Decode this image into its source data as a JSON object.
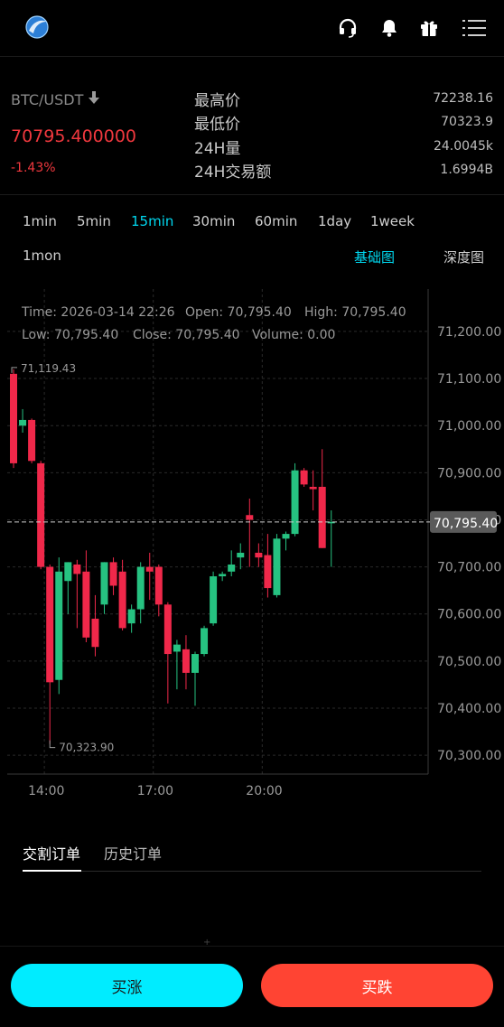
{
  "market": {
    "pair": "BTC/USDT",
    "price": "70795.400000",
    "change": "-1.43%"
  },
  "stats": [
    {
      "label": "最高价",
      "value": "72238.16"
    },
    {
      "label": "最低价",
      "value": "70323.9"
    },
    {
      "label": "24H量",
      "value": "24.0045k"
    },
    {
      "label": "24H交易额",
      "value": "1.6994B"
    }
  ],
  "timeframes": [
    "1min",
    "5min",
    "15min",
    "30min",
    "60min",
    "1day",
    "1week",
    "1mon"
  ],
  "active_timeframe": "15min",
  "chart_types": [
    "基础图",
    "深度图"
  ],
  "active_chart_type": "基础图",
  "chart_info": {
    "time": "Time: 2026-03-14 22:26",
    "open": "Open: 70,795.40",
    "high": "High: 70,795.40",
    "low": "Low: 70,795.40",
    "close": "Close: 70,795.40",
    "volume": "Volume: 0.00"
  },
  "chart_data": {
    "type": "candlestick",
    "y_ticks": [
      "71,200.00",
      "71,100.00",
      "71,000.00",
      "70,900.00",
      "70,800.00",
      "70,700.00",
      "70,600.00",
      "70,500.00",
      "70,400.00",
      "70,300.00"
    ],
    "ylim": [
      70260,
      71290
    ],
    "x_ticks": [
      {
        "label": "14:00",
        "index": 2
      },
      {
        "label": "17:00",
        "index": 14
      },
      {
        "label": "20:00",
        "index": 26
      }
    ],
    "last_price": 70795.4,
    "last_price_label": "70,795.40",
    "max_label": "71,119.43",
    "min_label": "70,323.90",
    "candles": [
      {
        "o": 71110,
        "h": 71119.43,
        "c": 70920,
        "l": 70910
      },
      {
        "o": 71000,
        "h": 71035,
        "c": 71012,
        "l": 70985
      },
      {
        "o": 71012,
        "h": 71015,
        "c": 70925,
        "l": 70920
      },
      {
        "o": 70920,
        "h": 70925,
        "c": 70700,
        "l": 70695
      },
      {
        "o": 70700,
        "h": 70705,
        "c": 70455,
        "l": 70323.9
      },
      {
        "o": 70460,
        "h": 70720,
        "c": 70690,
        "l": 70430
      },
      {
        "o": 70670,
        "h": 70710,
        "c": 70710,
        "l": 70600
      },
      {
        "o": 70705,
        "h": 70715,
        "c": 70685,
        "l": 70570
      },
      {
        "o": 70690,
        "h": 70735,
        "c": 70550,
        "l": 70540
      },
      {
        "o": 70590,
        "h": 70640,
        "c": 70530,
        "l": 70510
      },
      {
        "o": 70620,
        "h": 70710,
        "c": 70710,
        "l": 70600
      },
      {
        "o": 70710,
        "h": 70720,
        "c": 70660,
        "l": 70640
      },
      {
        "o": 70690,
        "h": 70715,
        "c": 70570,
        "l": 70565
      },
      {
        "o": 70580,
        "h": 70620,
        "c": 70610,
        "l": 70560
      },
      {
        "o": 70610,
        "h": 70710,
        "c": 70700,
        "l": 70580
      },
      {
        "o": 70700,
        "h": 70730,
        "c": 70690,
        "l": 70630
      },
      {
        "o": 70700,
        "h": 70705,
        "c": 70620,
        "l": 70595
      },
      {
        "o": 70620,
        "h": 70625,
        "c": 70515,
        "l": 70410
      },
      {
        "o": 70520,
        "h": 70545,
        "c": 70535,
        "l": 70440
      },
      {
        "o": 70525,
        "h": 70555,
        "c": 70475,
        "l": 70440
      },
      {
        "o": 70475,
        "h": 70520,
        "c": 70515,
        "l": 70405
      },
      {
        "o": 70515,
        "h": 70575,
        "c": 70570,
        "l": 70510
      },
      {
        "o": 70580,
        "h": 70690,
        "c": 70680,
        "l": 70575
      },
      {
        "o": 70680,
        "h": 70690,
        "c": 70685,
        "l": 70670
      },
      {
        "o": 70690,
        "h": 70735,
        "c": 70705,
        "l": 70680
      },
      {
        "o": 70720,
        "h": 70750,
        "c": 70730,
        "l": 70695
      },
      {
        "o": 70810,
        "h": 70845,
        "c": 70800,
        "l": 70700
      },
      {
        "o": 70730,
        "h": 70750,
        "c": 70720,
        "l": 70700
      },
      {
        "o": 70725,
        "h": 70770,
        "c": 70655,
        "l": 70635
      },
      {
        "o": 70640,
        "h": 70770,
        "c": 70760,
        "l": 70635
      },
      {
        "o": 70760,
        "h": 70775,
        "c": 70770,
        "l": 70735
      },
      {
        "o": 70770,
        "h": 70920,
        "c": 70905,
        "l": 70765
      },
      {
        "o": 70905,
        "h": 70910,
        "c": 70875,
        "l": 70870
      },
      {
        "o": 70870,
        "h": 70905,
        "c": 70865,
        "l": 70820
      },
      {
        "o": 70870,
        "h": 70950,
        "c": 70740,
        "l": 70740
      },
      {
        "o": 70795.4,
        "h": 70820,
        "c": 70795.4,
        "l": 70700
      }
    ]
  },
  "order_tabs": [
    "交割订单",
    "历史订单"
  ],
  "active_order_tab": "交割订单",
  "buttons": {
    "buy": "买涨",
    "sell": "买跌"
  },
  "colors": {
    "up": "#26c281",
    "down": "#f0284a",
    "accent": "#00e5ff",
    "sell_button": "#ff4433"
  }
}
